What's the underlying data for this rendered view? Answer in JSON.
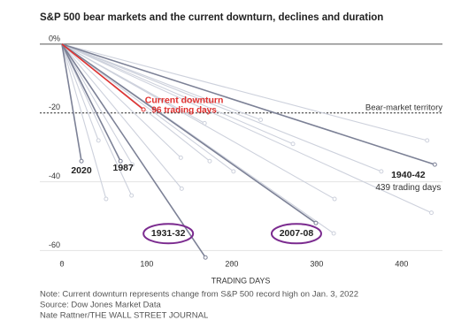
{
  "chart_data": {
    "type": "line",
    "title": "S&P 500 bear markets and the current downturn, declines and duration",
    "x_label": "TRADING DAYS",
    "xlim": [
      -26,
      448
    ],
    "xticks": [
      0,
      100,
      200,
      300,
      400
    ],
    "ylim": [
      -64,
      1
    ],
    "yticks": [
      {
        "value": 0,
        "label": "0%"
      },
      -20,
      -40,
      -60
    ],
    "grid": true,
    "threshold": {
      "value": -20,
      "label": "Bear-market territory"
    },
    "series": [
      {
        "color": "#cdd1dc",
        "x": [
          0,
          52
        ],
        "values": [
          0,
          -45
        ]
      },
      {
        "color": "#cdd1dc",
        "x": [
          0,
          82
        ],
        "values": [
          0,
          -44
        ]
      },
      {
        "color": "#cdd1dc",
        "x": [
          0,
          43
        ],
        "values": [
          0,
          -28
        ]
      },
      {
        "color": "#cdd1dc",
        "x": [
          0,
          83
        ],
        "values": [
          0,
          -35
        ]
      },
      {
        "color": "#cdd1dc",
        "x": [
          0,
          141
        ],
        "values": [
          0,
          -42
        ]
      },
      {
        "color": "#cdd1dc",
        "x": [
          0,
          140
        ],
        "values": [
          0,
          -33
        ]
      },
      {
        "color": "#cdd1dc",
        "x": [
          0,
          168
        ],
        "values": [
          0,
          -23
        ]
      },
      {
        "color": "#cdd1dc",
        "x": [
          0,
          174
        ],
        "values": [
          0,
          -34
        ]
      },
      {
        "color": "#cdd1dc",
        "x": [
          0,
          202
        ],
        "values": [
          0,
          -37
        ]
      },
      {
        "color": "#cdd1dc",
        "x": [
          0,
          234
        ],
        "values": [
          0,
          -22
        ]
      },
      {
        "color": "#cdd1dc",
        "x": [
          0,
          272
        ],
        "values": [
          0,
          -29
        ]
      },
      {
        "color": "#cdd1dc",
        "x": [
          0,
          320
        ],
        "values": [
          0,
          -55
        ]
      },
      {
        "color": "#cdd1dc",
        "x": [
          0,
          321
        ],
        "values": [
          0,
          -45
        ]
      },
      {
        "color": "#cdd1dc",
        "x": [
          0,
          376
        ],
        "values": [
          0,
          -37
        ]
      },
      {
        "color": "#cdd1dc",
        "x": [
          0,
          430
        ],
        "values": [
          0,
          -28
        ]
      },
      {
        "color": "#cdd1dc",
        "x": [
          0,
          435
        ],
        "values": [
          0,
          -49
        ]
      },
      {
        "name": "2020",
        "color": "#7c8196",
        "x": [
          0,
          23
        ],
        "values": [
          0,
          -34
        ]
      },
      {
        "name": "1987",
        "color": "#7c8196",
        "x": [
          0,
          69
        ],
        "values": [
          0,
          -34
        ]
      },
      {
        "name": "1931-32",
        "color": "#7c8196",
        "x": [
          0,
          169
        ],
        "values": [
          0,
          -62
        ]
      },
      {
        "name": "2007-08",
        "color": "#7c8196",
        "x": [
          0,
          299
        ],
        "values": [
          0,
          -52
        ]
      },
      {
        "name": "1940-42",
        "sublabel": "439 trading days",
        "color": "#7c8196",
        "x": [
          0,
          439
        ],
        "values": [
          0,
          -35
        ]
      },
      {
        "name": "Current downturn",
        "sublabel": "96 trading days",
        "color": "#e0312f",
        "x": [
          0,
          96
        ],
        "values": [
          0,
          -19
        ]
      }
    ],
    "notes": [
      "Note: Current downturn represents change from S&P 500 record high on Jan. 3, 2022",
      "Source: Dow Jones Market Data",
      "Nate Rattner/THE WALL STREET JOURNAL"
    ]
  }
}
